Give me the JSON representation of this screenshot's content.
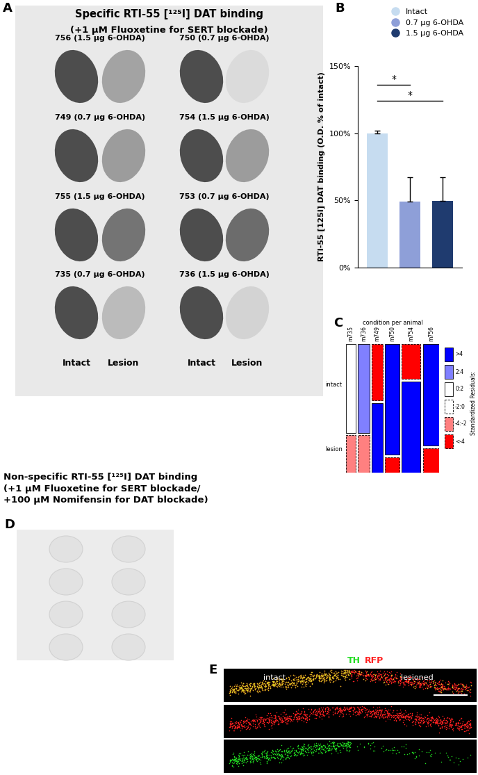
{
  "panel_A": {
    "label": "A",
    "title": "Specific RTI-55 [¹²⁵I] DAT binding",
    "subtitle": "(+1 µM Fluoxetine for SERT blockade)",
    "sections": [
      {
        "label": "756 (1.5 µg 6-OHDA)",
        "lesion_density": 0.45
      },
      {
        "label": "750 (0.7 µg 6-OHDA)",
        "lesion_density": 0.1
      },
      {
        "label": "749 (0.7 µg 6-OHDA)",
        "lesion_density": 0.5
      },
      {
        "label": "754 (1.5 µg 6-OHDA)",
        "lesion_density": 0.5
      },
      {
        "label": "755 (1.5 µg 6-OHDA)",
        "lesion_density": 0.75
      },
      {
        "label": "753 (0.7 µg 6-OHDA)",
        "lesion_density": 0.8
      },
      {
        "label": "735 (0.7 µg 6-OHDA)",
        "lesion_density": 0.3
      },
      {
        "label": "736 (1.5 µg 6-OHDA)",
        "lesion_density": 0.15
      }
    ],
    "column_labels": [
      "Intact",
      "Lesion"
    ]
  },
  "chart_data": [
    {
      "type": "bar",
      "panel": "B",
      "ylabel": "RTI-55 [125I] DAT binding (O.D. % of intact)",
      "categories": [
        "Intact",
        "0.7 µg 6-OHDA",
        "1.5 µg 6-OHDA"
      ],
      "values": [
        100,
        49,
        49.5
      ],
      "errors": [
        2,
        18,
        17.5
      ],
      "colors": [
        "#c6dcf0",
        "#8e9fd8",
        "#1f3b6f"
      ],
      "ylim": [
        0,
        150
      ],
      "yticks": [
        {
          "value": 0,
          "label": "0%"
        },
        {
          "value": 50,
          "label": "50%"
        },
        {
          "value": 100,
          "label": "100%"
        },
        {
          "value": 150,
          "label": "150%"
        }
      ],
      "legend": "upper right",
      "tick_labels": "y",
      "significance": [
        {
          "from": 0,
          "to": 1,
          "y": 136,
          "label": "*"
        },
        {
          "from": 0,
          "to": 2,
          "y": 124,
          "label": "*"
        }
      ]
    },
    {
      "type": "mosaic",
      "panel": "C",
      "title": "condition per animal",
      "categories": [
        "m735",
        "m736",
        "m749",
        "m750",
        "m754",
        "m756"
      ],
      "rows": [
        "intact",
        "lesion"
      ],
      "totals": [
        18,
        21,
        20,
        27,
        35,
        30
      ],
      "intact_fraction": [
        0.7,
        0.7,
        0.45,
        0.87,
        0.28,
        0.8
      ],
      "intact_residuals": [
        "0:2",
        "2:4",
        "<-4",
        ">4",
        "<-4",
        ">4"
      ],
      "lesion_residuals": [
        "-4:-2",
        "-4:-2",
        ">4",
        "<-4",
        ">4",
        "<-4"
      ],
      "residual_scale": {
        "title": "Standardized Residuals:",
        "labels": [
          ">4",
          "2:4",
          "0:2",
          "-2:0",
          "-4:-2",
          "<-4"
        ],
        "colors": [
          "#0000ff",
          "#8080ff",
          "#ffffff",
          "#ffffff",
          "#ff8080",
          "#ff0000"
        ],
        "line_styles": [
          "solid",
          "solid",
          "solid",
          "dashed",
          "dashed",
          "dashed"
        ]
      }
    }
  ],
  "panel_D": {
    "label": "D",
    "title": "Non-specific RTI-55 [¹²⁵I] DAT binding\n(+1 µM Fluoxetine for SERT blockade/\n+100 µM Nomifensin for DAT blockade)"
  },
  "panel_E": {
    "label": "E",
    "channels": [
      {
        "name": "TH",
        "color": "#22dd22"
      },
      {
        "name": "RFP",
        "color": "#ff2020"
      }
    ],
    "side_labels": [
      "intact",
      "lesioned"
    ]
  }
}
